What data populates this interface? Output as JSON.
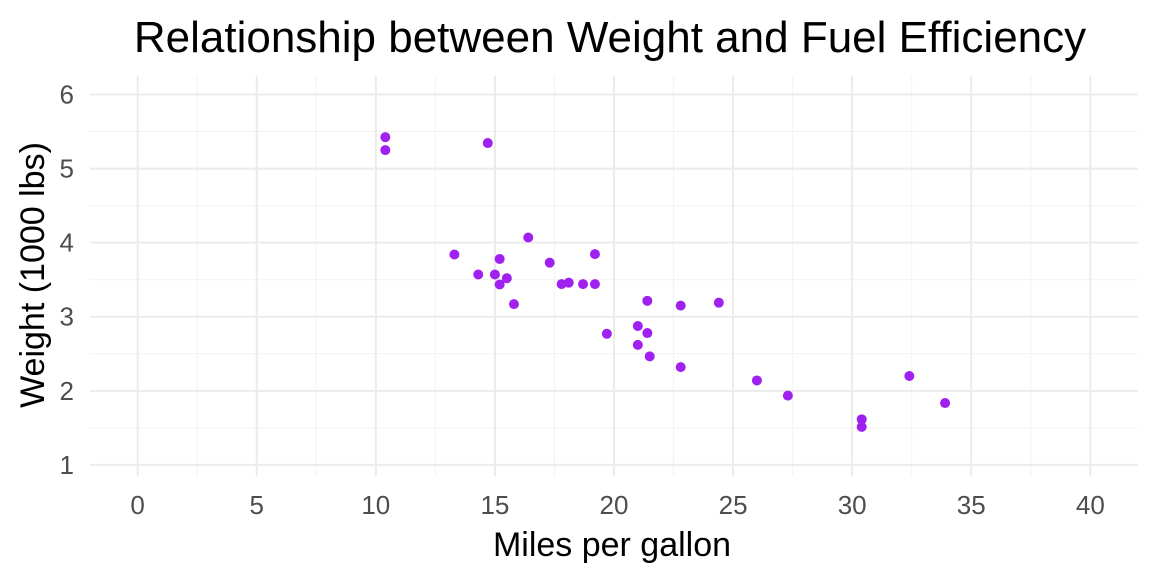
{
  "chart_data": {
    "type": "scatter",
    "title": "Relationship between Weight and Fuel Efficiency",
    "xlabel": "Miles per gallon",
    "ylabel": "Weight (1000 lbs)",
    "xlim": [
      -2,
      42
    ],
    "ylim": [
      0.85,
      6.25
    ],
    "xticks": [
      0,
      5,
      10,
      15,
      20,
      25,
      30,
      35,
      40
    ],
    "yticks": [
      1,
      2,
      3,
      4,
      5,
      6
    ],
    "grid": true,
    "point_color": "#a020f0",
    "series": [
      {
        "points": [
          {
            "x": 21.0,
            "y": 2.62
          },
          {
            "x": 21.0,
            "y": 2.875
          },
          {
            "x": 22.8,
            "y": 2.32
          },
          {
            "x": 21.4,
            "y": 3.215
          },
          {
            "x": 18.7,
            "y": 3.44
          },
          {
            "x": 18.1,
            "y": 3.46
          },
          {
            "x": 14.3,
            "y": 3.57
          },
          {
            "x": 24.4,
            "y": 3.19
          },
          {
            "x": 22.8,
            "y": 3.15
          },
          {
            "x": 19.2,
            "y": 3.44
          },
          {
            "x": 17.8,
            "y": 3.44
          },
          {
            "x": 16.4,
            "y": 4.07
          },
          {
            "x": 17.3,
            "y": 3.73
          },
          {
            "x": 15.2,
            "y": 3.78
          },
          {
            "x": 10.4,
            "y": 5.25
          },
          {
            "x": 10.4,
            "y": 5.424
          },
          {
            "x": 14.7,
            "y": 5.345
          },
          {
            "x": 32.4,
            "y": 2.2
          },
          {
            "x": 30.4,
            "y": 1.615
          },
          {
            "x": 33.9,
            "y": 1.835
          },
          {
            "x": 21.5,
            "y": 2.465
          },
          {
            "x": 15.5,
            "y": 3.52
          },
          {
            "x": 15.2,
            "y": 3.435
          },
          {
            "x": 13.3,
            "y": 3.84
          },
          {
            "x": 19.2,
            "y": 3.845
          },
          {
            "x": 27.3,
            "y": 1.935
          },
          {
            "x": 26.0,
            "y": 2.14
          },
          {
            "x": 30.4,
            "y": 1.513
          },
          {
            "x": 15.8,
            "y": 3.17
          },
          {
            "x": 19.7,
            "y": 2.77
          },
          {
            "x": 15.0,
            "y": 3.57
          },
          {
            "x": 21.4,
            "y": 2.78
          }
        ]
      }
    ]
  }
}
